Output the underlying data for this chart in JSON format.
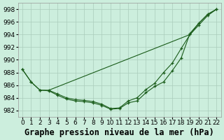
{
  "background_color": "#cceedd",
  "grid_color": "#aaccbb",
  "line_color": "#1a5c1a",
  "title": "Graphe pression niveau de la mer (hPa)",
  "xlim": [
    -0.5,
    22.5
  ],
  "ylim": [
    981,
    999
  ],
  "yticks": [
    982,
    984,
    986,
    988,
    990,
    992,
    994,
    996,
    998
  ],
  "xticks": [
    0,
    1,
    2,
    3,
    4,
    5,
    6,
    7,
    8,
    9,
    10,
    11,
    12,
    13,
    14,
    15,
    16,
    17,
    18,
    19,
    20,
    21,
    22
  ],
  "line1_x": [
    0,
    1,
    2,
    3,
    4,
    5,
    6,
    7,
    8,
    9,
    10,
    11,
    12,
    13,
    14,
    15,
    16,
    17,
    18,
    19,
    20,
    21,
    22
  ],
  "line1_y": [
    988.5,
    986.5,
    985.2,
    985.1,
    984.4,
    983.8,
    983.5,
    983.4,
    983.2,
    982.8,
    982.2,
    982.3,
    983.2,
    983.5,
    984.8,
    985.8,
    986.5,
    988.3,
    990.3,
    994.2,
    995.8,
    997.2,
    998.0
  ],
  "line2_x": [
    0,
    1,
    2,
    3,
    4,
    5,
    6,
    7,
    8,
    9,
    10,
    11,
    12,
    13,
    14,
    15,
    16,
    17,
    18,
    19,
    20,
    21,
    22
  ],
  "line2_y": [
    988.5,
    986.5,
    985.2,
    985.2,
    984.6,
    984.0,
    983.7,
    983.6,
    983.4,
    983.0,
    982.3,
    982.4,
    983.5,
    984.0,
    985.3,
    986.3,
    988.0,
    989.5,
    991.8,
    994.0,
    995.5,
    997.0,
    998.0
  ],
  "line3_x": [
    3,
    19,
    20,
    21,
    22
  ],
  "line3_y": [
    985.2,
    994.0,
    995.8,
    997.2,
    998.0
  ],
  "title_fontsize": 8.5,
  "tick_fontsize": 6.5
}
